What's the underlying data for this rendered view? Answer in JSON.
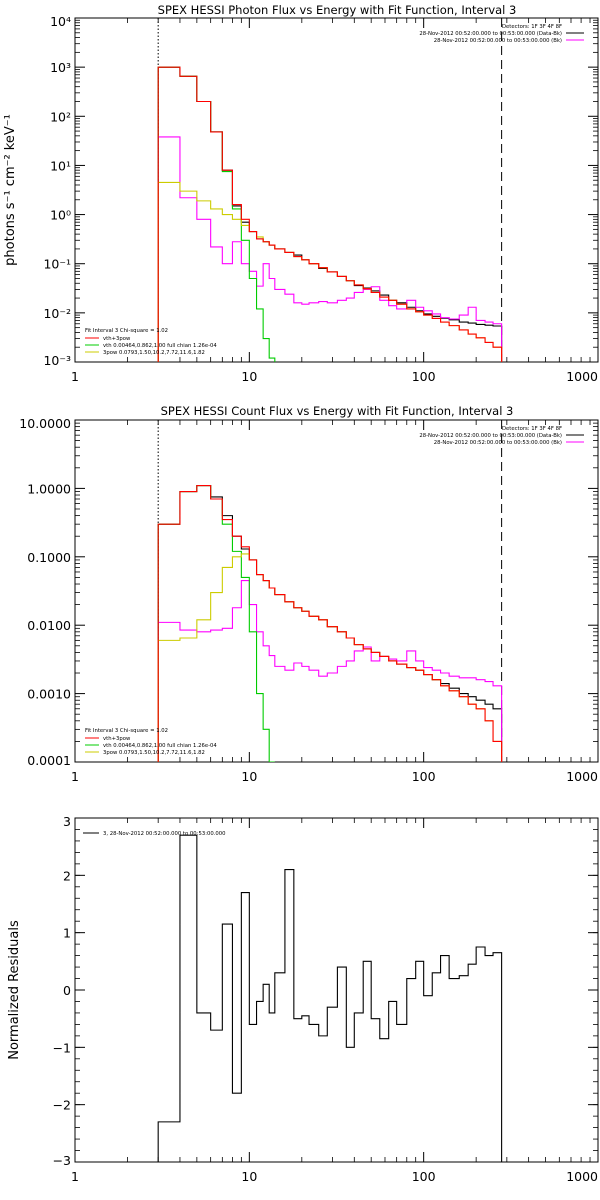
{
  "chart_data": [
    {
      "type": "line",
      "title": "SPEX HESSI Photon Flux vs Energy with Fit Function, Interval 3",
      "xlabel": "",
      "ylabel": "photons s⁻¹ cm⁻² keV⁻¹",
      "xlog": true,
      "ylog": true,
      "xlim": [
        1,
        1000
      ],
      "ylim": [
        0.001,
        10000
      ],
      "xticks": [
        1,
        10,
        100,
        1000
      ],
      "xtick_labels": [
        "1",
        "10",
        "100",
        "1000"
      ],
      "yticks": [
        0.001,
        0.01,
        0.1,
        1,
        10,
        100,
        1000,
        10000
      ],
      "ytick_labels": [
        "10⁻³",
        "10⁻²",
        "10⁻¹",
        "10⁰",
        "10¹",
        "10²",
        "10³",
        "10⁴"
      ],
      "vlines": [
        {
          "x": 3,
          "style": "dotted"
        },
        {
          "x": 280,
          "style": "dashed"
        }
      ],
      "header_lines": [
        "Detectors: 1F 3F 4F 8F",
        "28-Nov-2012 00:52:00.000 to 00:53:00.000 (Data-Bk)",
        "28-Nov-2012 00:52:00.000 to 00:53:00.000 (Bk)"
      ],
      "header_colors": [
        "",
        "#000000",
        "#ff00ff"
      ],
      "legend_title": "Fit Interval 3   Chi-square = 1.02",
      "legend_entries": [
        {
          "label": "vth+3pow",
          "color": "#ff0000"
        },
        {
          "label": "vth 0.00464,0.862,1.00   full chian 1.26e-04",
          "color": "#00cc00"
        },
        {
          "label": "3pow 0.0793,1.50,10.2,7.72,11.6,1.82",
          "color": "#cccc00"
        }
      ],
      "series": [
        {
          "color": "#000000",
          "edges": [
            3,
            4,
            5,
            6,
            7,
            8,
            9,
            10,
            11,
            12,
            13,
            14,
            16,
            18,
            20,
            22,
            25,
            28,
            32,
            36,
            40,
            45,
            50,
            56,
            63,
            70,
            80,
            90,
            100,
            112,
            125,
            140,
            160,
            180,
            200,
            225,
            250,
            280
          ],
          "values": [
            1000,
            650,
            200,
            48,
            8,
            1.5,
            0.7,
            0.45,
            0.32,
            0.28,
            0.24,
            0.2,
            0.17,
            0.15,
            0.12,
            0.1,
            0.08,
            0.068,
            0.055,
            0.045,
            0.036,
            0.032,
            0.028,
            0.023,
            0.018,
            0.016,
            0.013,
            0.011,
            0.0095,
            0.0085,
            0.0078,
            0.0072,
            0.0065,
            0.0062,
            0.0058,
            0.0056,
            0.0054
          ]
        },
        {
          "color": "#ff00ff",
          "edges": [
            3,
            4,
            5,
            6,
            7,
            8,
            9,
            10,
            11,
            12,
            13,
            14,
            16,
            18,
            20,
            22,
            25,
            28,
            32,
            36,
            40,
            45,
            50,
            56,
            63,
            70,
            80,
            90,
            100,
            112,
            125,
            140,
            160,
            180,
            200,
            225,
            250,
            280
          ],
          "values": [
            38,
            2.2,
            0.8,
            0.22,
            0.1,
            0.28,
            0.1,
            0.07,
            0.035,
            0.1,
            0.05,
            0.03,
            0.024,
            0.016,
            0.015,
            0.016,
            0.017,
            0.016,
            0.018,
            0.02,
            0.026,
            0.03,
            0.034,
            0.018,
            0.014,
            0.012,
            0.018,
            0.013,
            0.011,
            0.0095,
            0.008,
            0.0075,
            0.009,
            0.013,
            0.007,
            0.0065,
            0.006
          ]
        },
        {
          "color": "#00cc00",
          "edges": [
            3,
            4,
            5,
            6,
            7,
            8,
            9,
            10,
            11,
            12,
            13,
            14
          ],
          "values": [
            1000,
            650,
            200,
            48,
            7.5,
            1.3,
            0.3,
            0.05,
            0.012,
            0.003,
            0.0012
          ]
        },
        {
          "color": "#cccc00",
          "edges": [
            3,
            4,
            5,
            6,
            7,
            8,
            9,
            10,
            11,
            12,
            13,
            14,
            16,
            18,
            20,
            22,
            25,
            28,
            32,
            36,
            40,
            45,
            50,
            56,
            63,
            70,
            80,
            90,
            100,
            112,
            125,
            140,
            160,
            180,
            200,
            225,
            250,
            280
          ],
          "values": [
            4.5,
            3.0,
            1.9,
            1.3,
            1.0,
            0.8,
            0.6,
            0.45,
            0.35,
            0.28,
            0.24,
            0.2,
            0.17,
            0.14,
            0.12,
            0.1,
            0.083,
            0.068,
            0.055,
            0.045,
            0.037,
            0.031,
            0.026,
            0.021,
            0.018,
            0.015,
            0.012,
            0.0105,
            0.009,
            0.0077,
            0.0065,
            0.0055,
            0.0045,
            0.0037,
            0.0031,
            0.0025,
            0.002
          ]
        },
        {
          "color": "#ff0000",
          "edges": [
            3,
            4,
            5,
            6,
            7,
            8,
            9,
            10,
            11,
            12,
            13,
            14,
            16,
            18,
            20,
            22,
            25,
            28,
            32,
            36,
            40,
            45,
            50,
            56,
            63,
            70,
            80,
            90,
            100,
            112,
            125,
            140,
            160,
            180,
            200,
            225,
            250,
            280
          ],
          "values": [
            1000,
            650,
            200,
            48,
            8,
            1.6,
            0.8,
            0.45,
            0.32,
            0.28,
            0.24,
            0.2,
            0.17,
            0.14,
            0.12,
            0.1,
            0.083,
            0.068,
            0.055,
            0.045,
            0.037,
            0.031,
            0.026,
            0.021,
            0.018,
            0.015,
            0.012,
            0.0105,
            0.009,
            0.0077,
            0.0065,
            0.0055,
            0.0045,
            0.0037,
            0.0031,
            0.0025,
            0.002
          ]
        }
      ]
    },
    {
      "type": "line",
      "title": "SPEX HESSI Count Flux vs Energy with Fit Function, Interval 3",
      "xlabel": "",
      "ylabel": "",
      "xlog": true,
      "ylog": true,
      "xlim": [
        1,
        1000
      ],
      "ylim": [
        0.0001,
        10
      ],
      "xticks": [
        1,
        10,
        100,
        1000
      ],
      "xtick_labels": [
        "1",
        "10",
        "100",
        "1000"
      ],
      "yticks": [
        0.0001,
        0.001,
        0.01,
        0.1,
        1,
        10
      ],
      "ytick_labels": [
        "0.0001",
        "0.0010",
        "0.0100",
        "0.1000",
        "1.0000",
        "10.0000"
      ],
      "vlines": [
        {
          "x": 3,
          "style": "dotted"
        },
        {
          "x": 280,
          "style": "dashed"
        }
      ],
      "header_lines": [
        "Detectors: 1F 3F 4F 8F",
        "28-Nov-2012 00:52:00.000 to 00:53:00.000 (Data-Bk)",
        "28-Nov-2012 00:52:00.000 to 00:53:00.000 (Bk)"
      ],
      "header_colors": [
        "",
        "#000000",
        "#ff00ff"
      ],
      "legend_title": "Fit Interval 3   Chi-square = 1.02",
      "legend_entries": [
        {
          "label": "vth+3pow",
          "color": "#ff0000"
        },
        {
          "label": "vth 0.00464,0.862,1.00   full chian 1.26e-04",
          "color": "#00cc00"
        },
        {
          "label": "3pow 0.0793,1.50,10.2,7.72,11.6,1.82",
          "color": "#cccc00"
        }
      ],
      "series": [
        {
          "color": "#000000",
          "edges": [
            3,
            4,
            5,
            6,
            7,
            8,
            9,
            10,
            11,
            12,
            13,
            14,
            16,
            18,
            20,
            22,
            25,
            28,
            32,
            36,
            40,
            45,
            50,
            56,
            63,
            70,
            80,
            90,
            100,
            112,
            125,
            140,
            160,
            180,
            200,
            225,
            250,
            280
          ],
          "values": [
            0.3,
            0.9,
            1.1,
            0.75,
            0.4,
            0.2,
            0.13,
            0.09,
            0.055,
            0.045,
            0.035,
            0.028,
            0.022,
            0.018,
            0.016,
            0.0135,
            0.012,
            0.0095,
            0.008,
            0.0065,
            0.0052,
            0.0045,
            0.004,
            0.0035,
            0.003,
            0.0027,
            0.0024,
            0.0022,
            0.0019,
            0.0016,
            0.0014,
            0.0012,
            0.001,
            0.0009,
            0.0008,
            0.0007,
            0.0006
          ]
        },
        {
          "color": "#ff00ff",
          "edges": [
            3,
            4,
            5,
            6,
            7,
            8,
            9,
            10,
            11,
            12,
            13,
            14,
            16,
            18,
            20,
            22,
            25,
            28,
            32,
            36,
            40,
            45,
            50,
            56,
            63,
            70,
            80,
            90,
            100,
            112,
            125,
            140,
            160,
            180,
            200,
            225,
            250,
            280
          ],
          "values": [
            0.011,
            0.0085,
            0.008,
            0.0085,
            0.009,
            0.018,
            0.045,
            0.02,
            0.008,
            0.005,
            0.0036,
            0.0025,
            0.0022,
            0.0028,
            0.0025,
            0.0022,
            0.0018,
            0.002,
            0.0025,
            0.003,
            0.0042,
            0.0048,
            0.003,
            0.0035,
            0.0032,
            0.003,
            0.0042,
            0.003,
            0.0024,
            0.0022,
            0.002,
            0.0018,
            0.0017,
            0.0017,
            0.0016,
            0.0015,
            0.0013
          ]
        },
        {
          "color": "#00cc00",
          "edges": [
            3,
            4,
            5,
            6,
            7,
            8,
            9,
            10,
            11,
            12,
            13,
            14
          ],
          "values": [
            0.3,
            0.9,
            1.1,
            0.7,
            0.3,
            0.12,
            0.05,
            0.008,
            0.001,
            0.0003,
            0.0001
          ]
        },
        {
          "color": "#cccc00",
          "edges": [
            3,
            4,
            5,
            6,
            7,
            8,
            9,
            10,
            11,
            12,
            13,
            14,
            16,
            18,
            20,
            22,
            25,
            28,
            32,
            36,
            40,
            45,
            50,
            56,
            63,
            70,
            80,
            90,
            100,
            112,
            125,
            140,
            160,
            180,
            200,
            225,
            250,
            280
          ],
          "values": [
            0.006,
            0.0065,
            0.012,
            0.03,
            0.07,
            0.1,
            0.11,
            0.09,
            0.055,
            0.045,
            0.035,
            0.028,
            0.022,
            0.018,
            0.016,
            0.0135,
            0.012,
            0.0095,
            0.008,
            0.0065,
            0.0052,
            0.0045,
            0.004,
            0.0035,
            0.003,
            0.0027,
            0.0024,
            0.0022,
            0.0019,
            0.0016,
            0.0013,
            0.0011,
            0.0009,
            0.0007,
            0.0006,
            0.0004,
            0.0002
          ]
        },
        {
          "color": "#ff0000",
          "edges": [
            3,
            4,
            5,
            6,
            7,
            8,
            9,
            10,
            11,
            12,
            13,
            14,
            16,
            18,
            20,
            22,
            25,
            28,
            32,
            36,
            40,
            45,
            50,
            56,
            63,
            70,
            80,
            90,
            100,
            112,
            125,
            140,
            160,
            180,
            200,
            225,
            250,
            280
          ],
          "values": [
            0.3,
            0.9,
            1.1,
            0.7,
            0.35,
            0.2,
            0.14,
            0.09,
            0.055,
            0.045,
            0.035,
            0.028,
            0.022,
            0.018,
            0.016,
            0.0135,
            0.012,
            0.0095,
            0.008,
            0.0065,
            0.0052,
            0.0045,
            0.004,
            0.0035,
            0.003,
            0.0027,
            0.0024,
            0.0022,
            0.0019,
            0.0016,
            0.0013,
            0.0011,
            0.0009,
            0.0007,
            0.0006,
            0.0004,
            0.0002
          ]
        }
      ]
    },
    {
      "type": "line",
      "title": "",
      "xlabel": "",
      "ylabel": "Normalized Residuals",
      "xlog": true,
      "ylog": false,
      "xlim": [
        1,
        1000
      ],
      "ylim": [
        -3,
        3
      ],
      "xticks": [
        1,
        10,
        100,
        1000
      ],
      "xtick_labels": [
        "1",
        "10",
        "100",
        "1000"
      ],
      "yticks": [
        -3,
        -2,
        -1,
        0,
        1,
        2,
        3
      ],
      "ytick_labels": [
        "−3",
        "−2",
        "−1",
        "0",
        "1",
        "2",
        "3"
      ],
      "legend_entries": [
        {
          "label": "3, 28-Nov-2012 00:52:00.000 to 00:53:00.000",
          "color": "#000000"
        }
      ],
      "series": [
        {
          "color": "#000000",
          "edges": [
            3,
            4,
            5,
            6,
            7,
            8,
            9,
            10,
            11,
            12,
            13,
            14,
            16,
            18,
            20,
            22,
            25,
            28,
            32,
            36,
            40,
            45,
            50,
            56,
            63,
            70,
            80,
            90,
            100,
            112,
            125,
            140,
            160,
            180,
            200,
            225,
            250,
            280
          ],
          "values": [
            -2.3,
            2.7,
            -0.4,
            -0.7,
            1.15,
            -1.8,
            1.7,
            -0.6,
            -0.2,
            0.1,
            -0.4,
            0.3,
            2.1,
            -0.5,
            -0.45,
            -0.6,
            -0.8,
            -0.3,
            0.4,
            -1.0,
            -0.4,
            0.5,
            -0.5,
            -0.85,
            -0.2,
            -0.6,
            0.2,
            0.5,
            -0.1,
            0.3,
            0.6,
            0.2,
            0.25,
            0.45,
            0.75,
            0.6,
            0.65
          ]
        }
      ]
    }
  ]
}
